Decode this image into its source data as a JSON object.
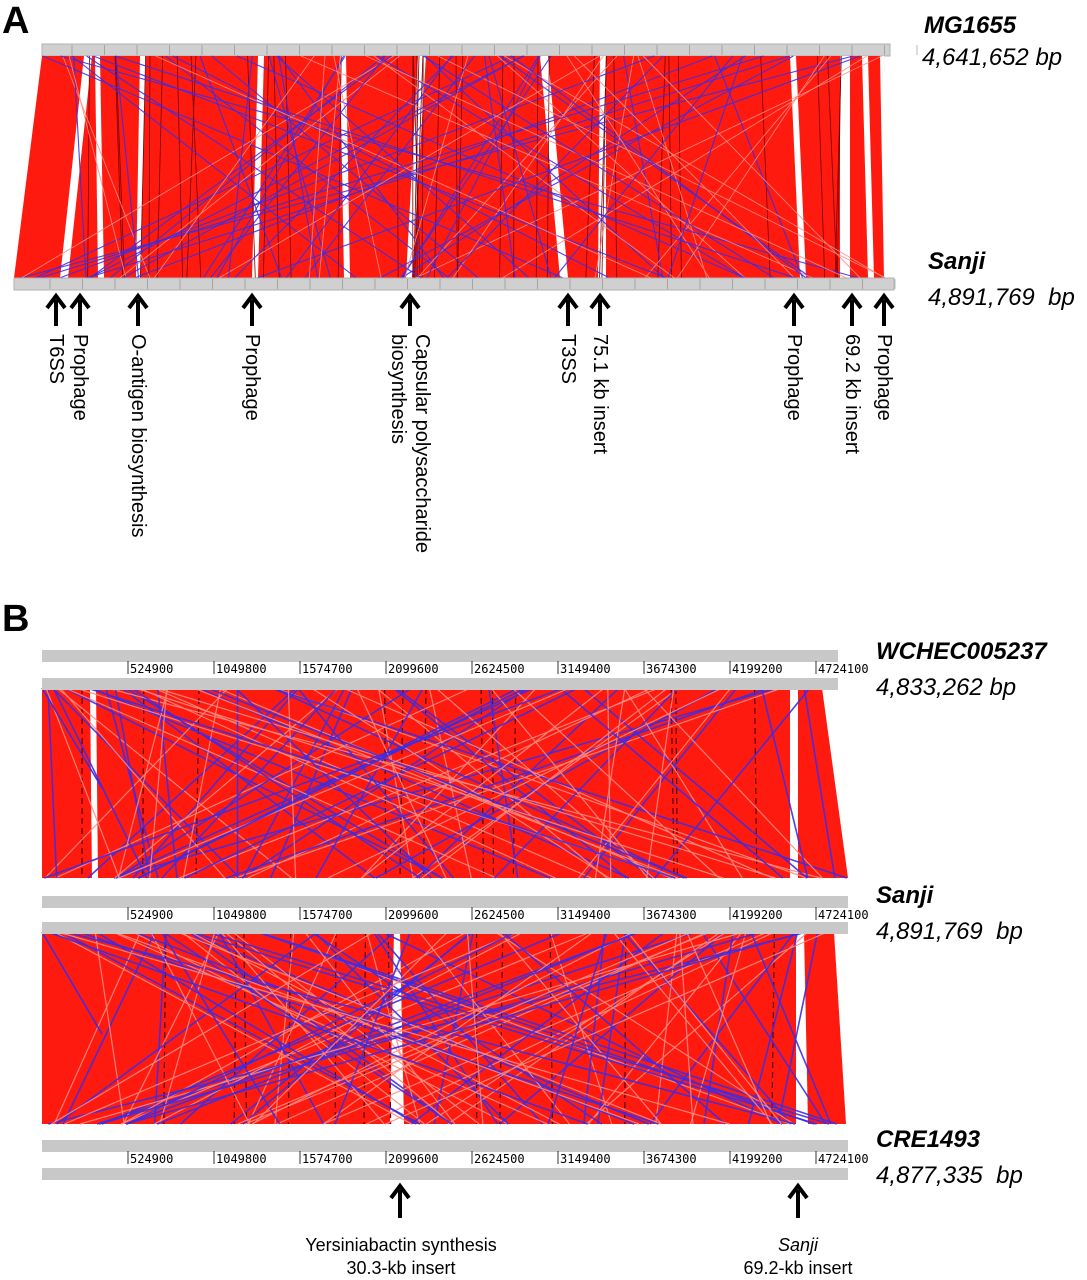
{
  "panel_a": {
    "letter": "A",
    "top_genome": {
      "name": "MG1655",
      "size": "4,641,652 bp"
    },
    "bottom_genome": {
      "name": "Sanji",
      "size": "4,891,769  bp"
    },
    "annotations": [
      {
        "label": "T6SS",
        "lines": [
          "T6SS"
        ]
      },
      {
        "label": "Prophage",
        "lines": [
          "Prophage"
        ]
      },
      {
        "label": "O-antigen biosynthesis",
        "lines": [
          "O-antigen biosynthesis"
        ]
      },
      {
        "label": "Prophage",
        "lines": [
          "Prophage"
        ]
      },
      {
        "label": "Capsular polysaccharide biosynthesis",
        "lines": [
          "Capsular polysaccharide",
          "biosynthesis"
        ]
      },
      {
        "label": "T3SS",
        "lines": [
          "T3SS"
        ]
      },
      {
        "label": "75.1 kb insert",
        "lines": [
          "75.1 kb insert"
        ]
      },
      {
        "label": "Prophage",
        "lines": [
          "Prophage"
        ]
      },
      {
        "label": "69.2 kb insert",
        "lines": [
          "69.2 kb insert"
        ]
      },
      {
        "label": "Prophage",
        "lines": [
          "Prophage"
        ]
      }
    ]
  },
  "panel_b": {
    "letter": "B",
    "tick_labels": [
      "524900",
      "1049800",
      "1574700",
      "2099600",
      "2624500",
      "3149400",
      "3674300",
      "4199200",
      "4724100"
    ],
    "genomes": [
      {
        "name": "WCHEC005237",
        "size": "4,833,262 bp"
      },
      {
        "name": "Sanji",
        "size": "4,891,769  bp"
      },
      {
        "name": "CRE1493",
        "size": "4,877,335  bp"
      }
    ],
    "annotations": [
      {
        "line1": "Yersiniabactin synthesis",
        "line1_italic": false,
        "line2": "30.3-kb insert"
      },
      {
        "line1": "Sanji",
        "line1_italic": true,
        "line2": "69.2-kb insert"
      }
    ]
  },
  "colors": {
    "forward_match": "#ff1a10",
    "inverted_match": "#3a2de8",
    "light_match": "#ff8a80",
    "genome_bar": "#c8c8c8"
  }
}
